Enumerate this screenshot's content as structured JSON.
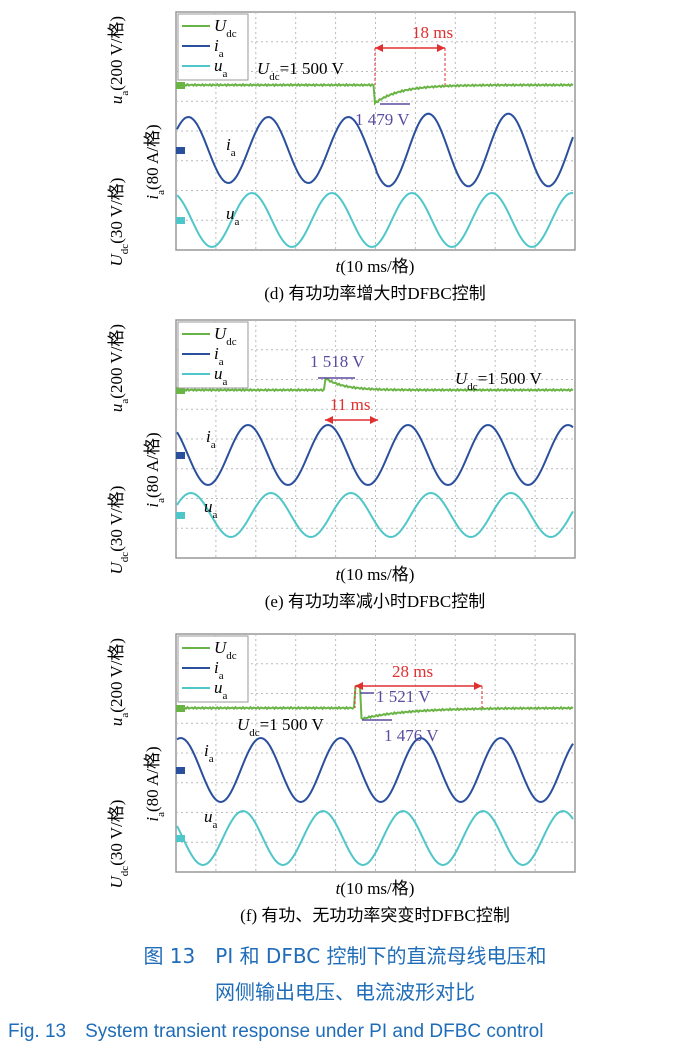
{
  "panels": [
    {
      "ylabels": [
        {
          "sym": "u",
          "sub": "a",
          "unit": "(200 V/格)"
        },
        {
          "sym": "i",
          "sub": "a",
          "unit": "(80 A/格)"
        },
        {
          "sym": "U",
          "sub": "dc",
          "unit": "(30 V/格)"
        }
      ],
      "legend": [
        {
          "sym": "U",
          "sub": "dc"
        },
        {
          "sym": "i",
          "sub": "a"
        },
        {
          "sym": "u",
          "sub": "a"
        }
      ],
      "trace_labels": [
        {
          "sym": "i",
          "sub": "a"
        },
        {
          "sym": "u",
          "sub": "a"
        }
      ],
      "dc_label": {
        "sym": "U",
        "sub": "dc",
        "text": "=1 500 V"
      },
      "time_label": "18 ms",
      "value_labels": [
        "1 479 V"
      ],
      "xlabel": {
        "sym": "t",
        "unit": "(10 ms/格)"
      },
      "caption": "(d) 有功功率增大时DFBC控制"
    },
    {
      "ylabels": [
        {
          "sym": "u",
          "sub": "a",
          "unit": "(200 V/格)"
        },
        {
          "sym": "i",
          "sub": "a",
          "unit": "(80 A/格)"
        },
        {
          "sym": "U",
          "sub": "dc",
          "unit": "(30 V/格)"
        }
      ],
      "legend": [
        {
          "sym": "U",
          "sub": "dc"
        },
        {
          "sym": "i",
          "sub": "a"
        },
        {
          "sym": "u",
          "sub": "a"
        }
      ],
      "trace_labels": [
        {
          "sym": "i",
          "sub": "a"
        },
        {
          "sym": "u",
          "sub": "a"
        }
      ],
      "dc_label": {
        "sym": "U",
        "sub": "dc",
        "text": "=1 500 V"
      },
      "time_label": "11 ms",
      "value_labels": [
        "1 518 V"
      ],
      "xlabel": {
        "sym": "t",
        "unit": "(10 ms/格)"
      },
      "caption": "(e) 有功功率减小时DFBC控制"
    },
    {
      "ylabels": [
        {
          "sym": "u",
          "sub": "a",
          "unit": "(200 V/格)"
        },
        {
          "sym": "i",
          "sub": "a",
          "unit": "(80 A/格)"
        },
        {
          "sym": "U",
          "sub": "dc",
          "unit": "(30 V/格)"
        }
      ],
      "legend": [
        {
          "sym": "U",
          "sub": "dc"
        },
        {
          "sym": "i",
          "sub": "a"
        },
        {
          "sym": "u",
          "sub": "a"
        }
      ],
      "trace_labels": [
        {
          "sym": "i",
          "sub": "a"
        },
        {
          "sym": "u",
          "sub": "a"
        }
      ],
      "dc_label": {
        "sym": "U",
        "sub": "dc",
        "text": "=1 500 V"
      },
      "time_label": "28 ms",
      "value_labels": [
        "1 521 V",
        "1 476 V"
      ],
      "xlabel": {
        "sym": "t",
        "unit": "(10 ms/格)"
      },
      "caption": "(f) 有功、无功功率突变时DFBC控制"
    }
  ],
  "caption_zh": [
    "图 13　PI 和 DFBC 控制下的直流母线电压和",
    "网侧输出电压、电流波形对比"
  ],
  "caption_en": "Fig. 13　System transient response under PI and DFBC control"
}
